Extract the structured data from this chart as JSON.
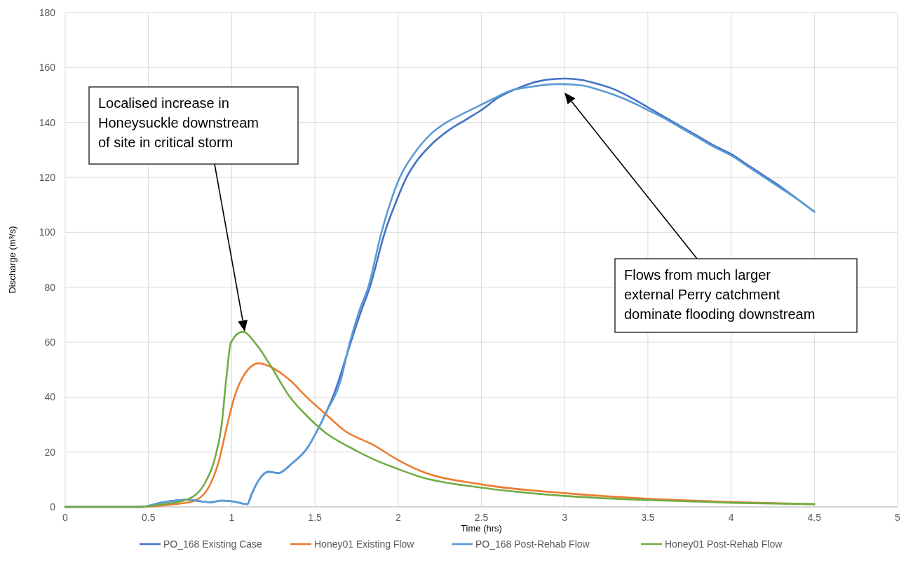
{
  "chart_data": {
    "type": "line",
    "xlabel": "Time (hrs)",
    "ylabel": "Discharge (m³/s)",
    "xlim": [
      0,
      5
    ],
    "xticks": [
      0,
      0.5,
      1,
      1.5,
      2,
      2.5,
      3,
      3.5,
      4,
      4.5,
      5
    ],
    "ylim": [
      0,
      180
    ],
    "yticks": [
      0,
      20,
      40,
      60,
      80,
      100,
      120,
      140,
      160,
      180
    ],
    "grid": true,
    "legend": "bottom",
    "marker": "none",
    "line_style": "solid",
    "series": [
      {
        "name": "PO_168 Existing Case",
        "color": "#4472c4",
        "x": [
          0,
          0.3,
          0.45,
          0.59,
          0.73,
          0.87,
          0.94,
          1.01,
          1.094,
          1.12,
          1.163,
          1.22,
          1.28,
          1.36,
          1.457,
          1.513,
          1.568,
          1.62,
          1.7,
          1.77,
          1.83,
          1.92,
          2.0,
          2.05,
          2.1,
          2.2,
          2.3,
          2.42,
          2.5,
          2.6,
          2.7,
          2.8,
          2.9,
          3.0,
          3.1,
          3.2,
          3.3,
          3.4,
          3.5,
          3.6,
          3.7,
          3.8,
          3.9,
          4.0,
          4.1,
          4.2,
          4.3,
          4.4,
          4.5
        ],
        "values": [
          0,
          0,
          0,
          1.7,
          2.6,
          1.7,
          2.3,
          2,
          1,
          4.7,
          9.8,
          12.8,
          12.3,
          15.7,
          21.7,
          27.7,
          34.5,
          42,
          57,
          70,
          80,
          100,
          113,
          120,
          125,
          132,
          137,
          141.5,
          144.5,
          149,
          152,
          154.3,
          155.6,
          156,
          155.5,
          154,
          152,
          149,
          145.5,
          142,
          138.5,
          135,
          131.5,
          128.5,
          124.5,
          120.5,
          116.5,
          112,
          107.5
        ]
      },
      {
        "name": "Honey01 Existing Flow",
        "color": "#ed7d31",
        "x": [
          0,
          0.3,
          0.45,
          0.66,
          0.772,
          0.87,
          0.926,
          0.968,
          1.01,
          1.066,
          1.163,
          1.233,
          1.345,
          1.457,
          1.568,
          1.68,
          1.85,
          1.99,
          2.13,
          2.5,
          3.0,
          3.5,
          4.0,
          4.5
        ],
        "values": [
          0,
          0,
          0,
          1,
          2.1,
          8.1,
          17.4,
          28.5,
          38.7,
          47.2,
          52.3,
          51,
          46.4,
          39.6,
          33.6,
          27.7,
          22.6,
          17.4,
          13.2,
          8.2,
          5,
          3,
          1.8,
          1
        ]
      },
      {
        "name": "PO_168 Post-Rehab Flow",
        "color": "#5b9bd5",
        "x": [
          0,
          0.3,
          0.45,
          0.59,
          0.73,
          0.87,
          0.94,
          1.01,
          1.094,
          1.12,
          1.163,
          1.22,
          1.28,
          1.36,
          1.457,
          1.513,
          1.568,
          1.652,
          1.71,
          1.77,
          1.82,
          1.9,
          2.01,
          2.1,
          2.2,
          2.29,
          2.4,
          2.5,
          2.6,
          2.67,
          2.8,
          2.9,
          2.97,
          3.1,
          3.2,
          3.3,
          3.4,
          3.5,
          3.6,
          3.7,
          3.8,
          3.9,
          4.0,
          4.1,
          4.2,
          4.3,
          4.4,
          4.5
        ],
        "values": [
          0,
          0,
          0,
          1.7,
          2.6,
          1.7,
          2.3,
          2,
          1,
          4.7,
          9.8,
          12.8,
          12.3,
          15.7,
          21.7,
          27.7,
          34.5,
          45.5,
          60,
          72,
          80,
          100,
          120,
          129,
          136,
          140,
          143.5,
          146.5,
          149.5,
          151.5,
          153,
          153.8,
          154,
          153.5,
          152,
          150,
          147.5,
          144.5,
          141.5,
          138,
          134.5,
          131,
          128,
          124,
          120,
          116,
          112,
          107.5
        ]
      },
      {
        "name": "Honey01 Post-Rehab Flow",
        "color": "#70ad47",
        "x": [
          0,
          0.3,
          0.45,
          0.59,
          0.73,
          0.842,
          0.898,
          0.94,
          0.968,
          0.996,
          1.066,
          1.15,
          1.233,
          1.345,
          1.457,
          1.568,
          1.71,
          1.85,
          1.99,
          2.13,
          2.5,
          3.0,
          3.5,
          4.0,
          4.5
        ],
        "values": [
          0,
          0,
          0,
          1,
          2.6,
          9,
          17.4,
          30,
          47,
          60,
          63.8,
          59,
          51.5,
          40.4,
          32.8,
          26.8,
          21.7,
          17.4,
          14,
          11,
          7,
          4,
          2.5,
          1.5,
          1
        ]
      }
    ],
    "annotations": [
      "Localised increase in\nHoneysuckle downstream\nof site in critical storm",
      "Flows from much larger\nexternal Perry catchment\ndominate flooding downstream"
    ]
  }
}
